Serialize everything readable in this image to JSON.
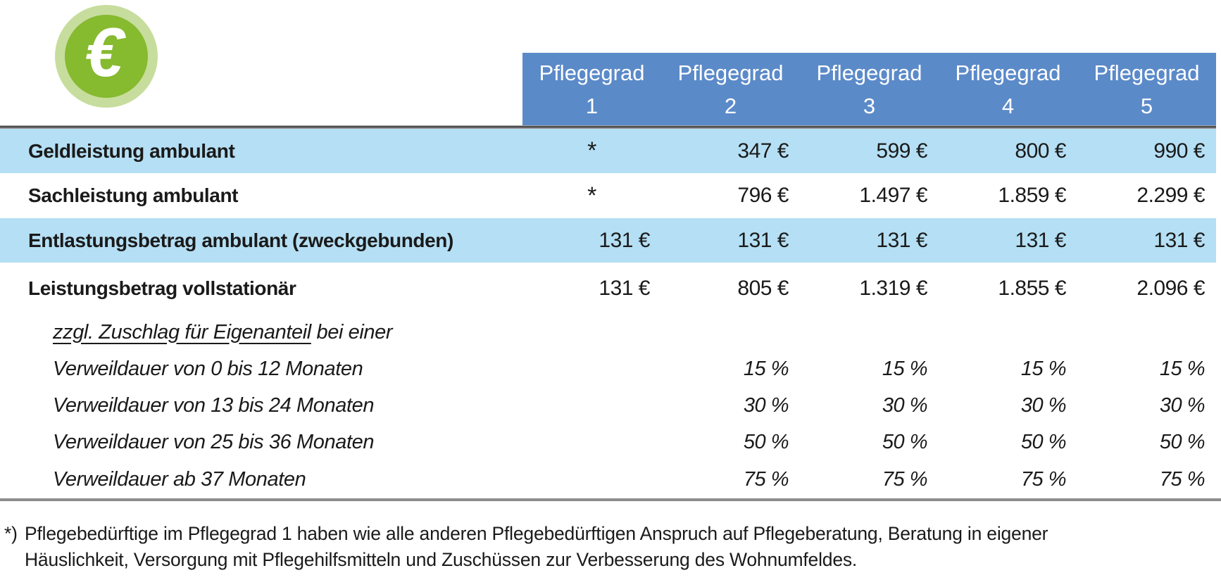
{
  "icon": {
    "symbol": "€",
    "outer_color": "#c7dd9d",
    "inner_color": "#86ba2f"
  },
  "colors": {
    "header_blue": "#5b8ac8",
    "row_highlight_blue": "#b5dff4",
    "top_rule": "#4e4e4e",
    "bottom_rule": "#8c8c8c"
  },
  "header": {
    "columns": [
      {
        "label": "Pflegegrad",
        "number": "1"
      },
      {
        "label": "Pflegegrad",
        "number": "2"
      },
      {
        "label": "Pflegegrad",
        "number": "3"
      },
      {
        "label": "Pflegegrad",
        "number": "4"
      },
      {
        "label": "Pflegegrad",
        "number": "5"
      }
    ]
  },
  "table": {
    "rows": [
      {
        "label": "Geldleistung ambulant",
        "values": [
          "*",
          "347 €",
          "599 €",
          "800 €",
          "990 €"
        ],
        "highlighted": true
      },
      {
        "label": "Sachleistung ambulant",
        "values": [
          "*",
          "796 €",
          "1.497 €",
          "1.859 €",
          "2.299 €"
        ],
        "highlighted": false
      },
      {
        "label": "Entlastungsbetrag ambulant (zweckgebunden)",
        "values": [
          "131 €",
          "131 €",
          "131 €",
          "131 €",
          "131 €"
        ],
        "highlighted": true
      },
      {
        "label": "Leistungsbetrag vollstationär",
        "values": [
          "131 €",
          "805 €",
          "1.319 €",
          "1.855 €",
          "2.096 €"
        ],
        "highlighted": false
      }
    ],
    "sub_rows": [
      {
        "label_underlined": "zzgl. Zuschlag für Eigenanteil",
        "label_rest": " bei einer",
        "values": [
          "",
          "",
          "",
          "",
          ""
        ]
      },
      {
        "label": "Verweildauer von 0 bis 12 Monaten",
        "values": [
          "",
          "15 %",
          "15 %",
          "15 %",
          "15 %"
        ]
      },
      {
        "label": "Verweildauer von 13 bis 24 Monaten",
        "values": [
          "",
          "30 %",
          "30 %",
          "30 %",
          "30 %"
        ]
      },
      {
        "label": "Verweildauer von 25 bis 36 Monaten",
        "values": [
          "",
          "50 %",
          "50 %",
          "50 %",
          "50 %"
        ]
      },
      {
        "label": "Verweildauer ab 37 Monaten",
        "values": [
          "",
          "75 %",
          "75 %",
          "75 %",
          "75 %"
        ]
      }
    ]
  },
  "footnote": {
    "marker": "*)",
    "line1": "Pflegebedürftige im Pflegegrad 1 haben wie alle anderen Pflegebedürftigen Anspruch auf Pflegeberatung, Beratung in eigener",
    "line2": "Häuslichkeit, Versorgung mit Pflegehilfsmitteln und Zuschüssen zur Verbesserung des Wohnumfeldes."
  }
}
